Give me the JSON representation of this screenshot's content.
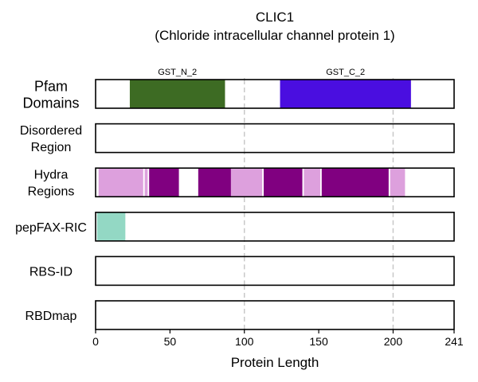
{
  "chart_data": {
    "type": "bar",
    "title": "CLIC1",
    "subtitle": "(Chloride intracellular channel protein 1)",
    "xlabel": "Protein Length",
    "xlim": [
      0,
      241
    ],
    "xticks": [
      0,
      50,
      100,
      150,
      200,
      241
    ],
    "grid_lines_at": [
      100,
      200
    ],
    "tracks": [
      {
        "name": "Pfam\nDomains",
        "segments": [
          {
            "start": 23,
            "end": 87,
            "color": "#3d6b23",
            "label": "GST_N_2"
          },
          {
            "start": 124,
            "end": 212,
            "color": "#4a0ee0",
            "label": "GST_C_2"
          }
        ]
      },
      {
        "name": "Disordered\nRegion",
        "segments": []
      },
      {
        "name": "Hydra\nRegions",
        "segments": [
          {
            "start": 2,
            "end": 32,
            "color": "#dda0dd"
          },
          {
            "start": 33,
            "end": 35,
            "color": "#dda0dd"
          },
          {
            "start": 36,
            "end": 56,
            "color": "#800080"
          },
          {
            "start": 69,
            "end": 91,
            "color": "#800080"
          },
          {
            "start": 91,
            "end": 112,
            "color": "#dda0dd"
          },
          {
            "start": 113,
            "end": 139,
            "color": "#800080"
          },
          {
            "start": 140,
            "end": 151,
            "color": "#dda0dd"
          },
          {
            "start": 152,
            "end": 197,
            "color": "#800080"
          },
          {
            "start": 198,
            "end": 208,
            "color": "#dda0dd"
          }
        ]
      },
      {
        "name": "pepFAX-RIC",
        "segments": [
          {
            "start": 1,
            "end": 20,
            "color": "#93d8c4"
          }
        ]
      },
      {
        "name": "RBS-ID",
        "segments": []
      },
      {
        "name": "RBDmap",
        "segments": []
      }
    ]
  }
}
